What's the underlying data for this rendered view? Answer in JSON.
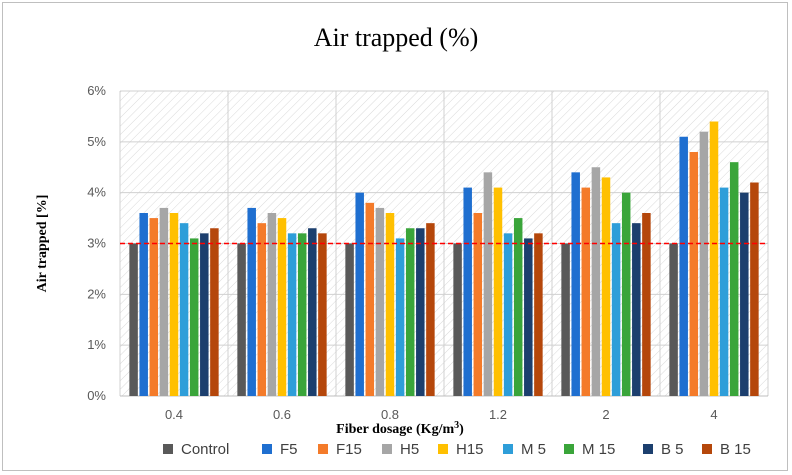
{
  "chart_data": {
    "type": "bar",
    "title": "Air trapped (%)",
    "xlabel": "Fiber dosage (Kg/m",
    "xlabel_sup": "3",
    "xlabel_suffix": ")",
    "ylabel": "Air trapped [%]",
    "ylim": [
      0,
      6
    ],
    "yticks": [
      "0%",
      "1%",
      "2%",
      "3%",
      "4%",
      "5%",
      "6%"
    ],
    "reference_line": 3.0,
    "categories": [
      "0.4",
      "0.6",
      "0.8",
      "1.2",
      "2",
      "4"
    ],
    "series": [
      {
        "name": "Control",
        "color": "#595959",
        "values": [
          3.0,
          3.0,
          3.0,
          3.0,
          3.0,
          3.0
        ]
      },
      {
        "name": "F5",
        "color": "#1f6fd0",
        "values": [
          3.6,
          3.7,
          4.0,
          4.1,
          4.4,
          5.1
        ]
      },
      {
        "name": "F15",
        "color": "#f47b2a",
        "values": [
          3.5,
          3.4,
          3.8,
          3.6,
          4.1,
          4.8
        ]
      },
      {
        "name": "H5",
        "color": "#a6a6a6",
        "values": [
          3.7,
          3.6,
          3.7,
          4.4,
          4.5,
          5.2
        ]
      },
      {
        "name": "H15",
        "color": "#ffc000",
        "values": [
          3.6,
          3.5,
          3.6,
          4.1,
          4.3,
          5.4
        ]
      },
      {
        "name": "M 5",
        "color": "#2e9ed9",
        "values": [
          3.4,
          3.2,
          3.1,
          3.2,
          3.4,
          4.1
        ]
      },
      {
        "name": "M 15",
        "color": "#3aa53a",
        "values": [
          3.1,
          3.2,
          3.3,
          3.5,
          4.0,
          4.6
        ]
      },
      {
        "name": "B 5",
        "color": "#1c3f6e",
        "values": [
          3.2,
          3.3,
          3.3,
          3.1,
          3.4,
          4.0
        ]
      },
      {
        "name": "B 15",
        "color": "#b5470b",
        "values": [
          3.3,
          3.2,
          3.4,
          3.2,
          3.6,
          4.2
        ]
      }
    ],
    "legend_position": "bottom",
    "grid": true
  }
}
